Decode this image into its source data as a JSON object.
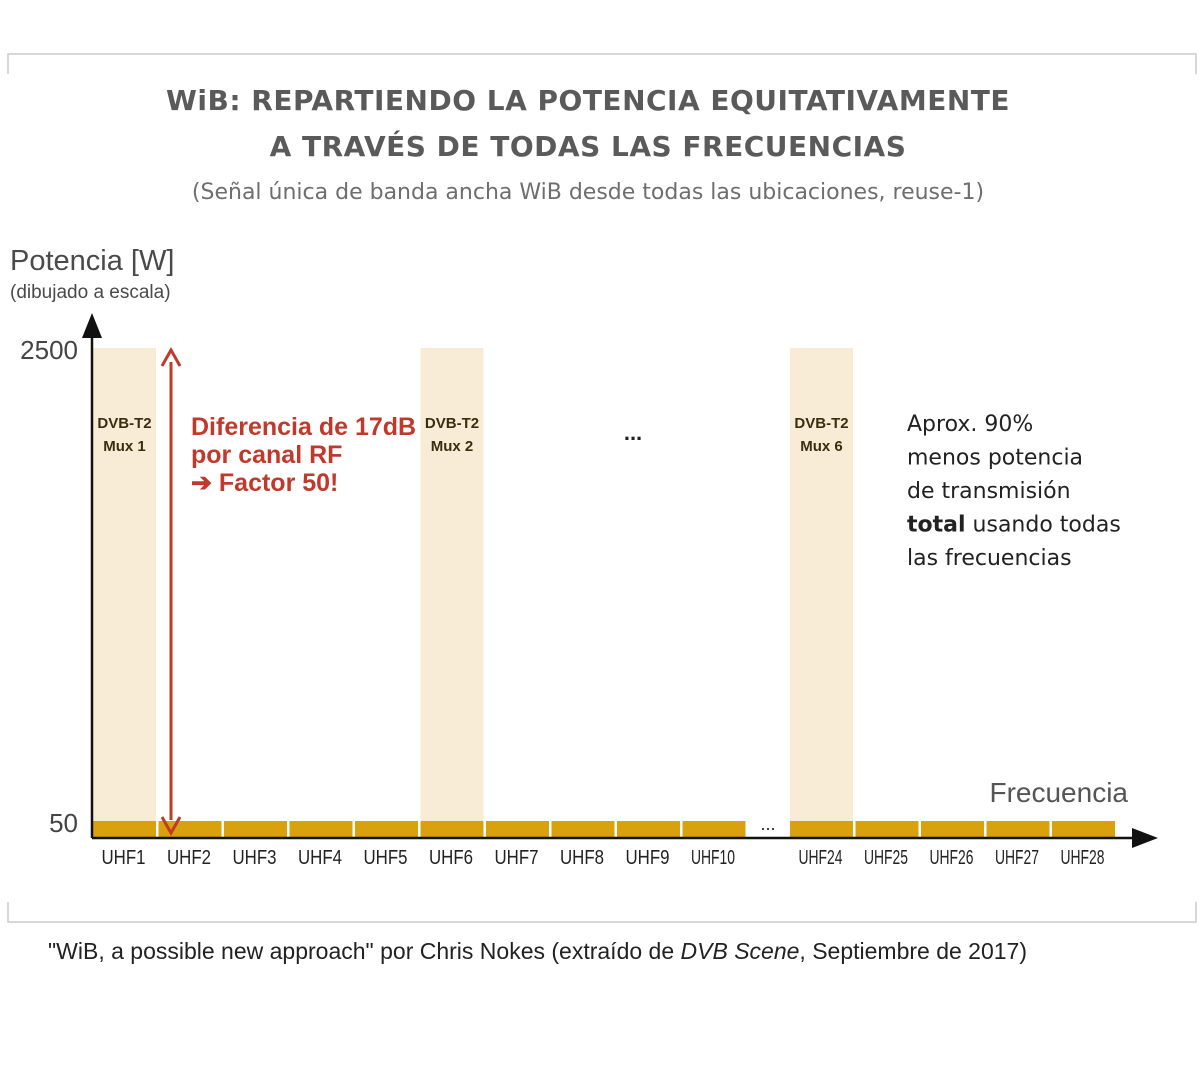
{
  "chart_data": {
    "type": "bar",
    "title": "WiB: REPARTIENDO LA POTENCIA EQUITATIVAMENTE A TRAVÉS DE TODAS LAS FRECUENCIAS",
    "title_lines": [
      "WiB: REPARTIENDO LA POTENCIA EQUITATIVAMENTE",
      "A TRAVÉS DE TODAS LAS FRECUENCIAS"
    ],
    "subtitle": "(Señal única de banda ancha WiB desde todas las ubicaciones, reuse-1)",
    "ylabel": "Potencia [W]",
    "ylabel_note": "(dibujado a escala)",
    "xlabel": "Frecuencia",
    "yticks": [
      50,
      2500
    ],
    "categories": [
      "UHF1",
      "UHF2",
      "UHF3",
      "UHF4",
      "UHF5",
      "UHF6",
      "UHF7",
      "UHF8",
      "UHF9",
      "UHF10",
      "UHF24",
      "UHF25",
      "UHF26",
      "UHF27",
      "UHF28"
    ],
    "axis_gap_label": "...",
    "series": [
      {
        "name": "WiB",
        "color": "#d9a10e",
        "values": [
          50,
          50,
          50,
          50,
          50,
          50,
          50,
          50,
          50,
          50,
          50,
          50,
          50,
          50,
          50
        ]
      },
      {
        "name": "DVB-T2",
        "color": "#f8ecd6",
        "values": [
          2500,
          null,
          null,
          null,
          null,
          2500,
          null,
          null,
          null,
          null,
          2500,
          null,
          null,
          null,
          null
        ],
        "labels": [
          "DVB-T2\nMux 1",
          null,
          null,
          null,
          null,
          "DVB-T2\nMux 2",
          null,
          null,
          null,
          null,
          "DVB-T2\nMux 6",
          null,
          null,
          null,
          null
        ]
      }
    ],
    "middle_ellipsis": "...",
    "annotation_arrow": {
      "color": "#c0392b",
      "lines": [
        "Diferencia de 17dB",
        "por canal RF",
        "➔ Factor 50!"
      ]
    },
    "note_lines": [
      {
        "plain": "Aprox. 90%",
        "bold": ""
      },
      {
        "plain": "menos potencia",
        "bold": ""
      },
      {
        "plain": "de transmisión",
        "bold": ""
      },
      {
        "plain": " usando todas",
        "bold": "total"
      },
      {
        "plain": "las frecuencias",
        "bold": ""
      }
    ],
    "grid": false
  },
  "caption": {
    "before": "\"WiB, a possible new approach\" por Chris Nokes (extraído de ",
    "italic": "DVB Scene",
    "after": ", Septiembre de 2017)"
  },
  "colors": {
    "frame": "#cccccc",
    "axis": "#111111",
    "wib_bar": "#d9a10e",
    "dvb_bar": "#f8ecd6",
    "arrow": "#c0392b",
    "title": "#5a5a5a"
  }
}
